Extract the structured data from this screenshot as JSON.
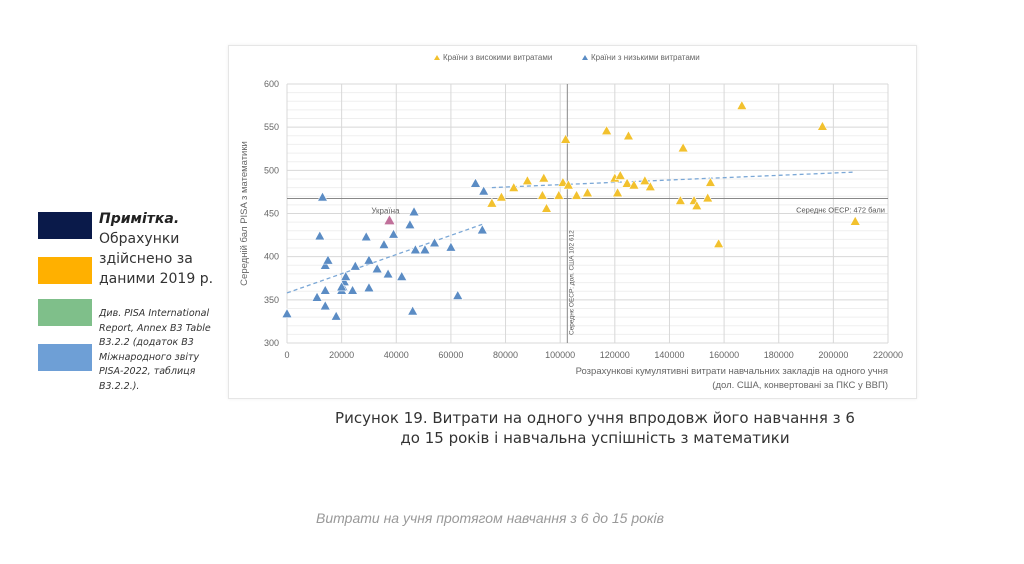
{
  "legend_boxes": {
    "colors": [
      "#0a1a4a",
      "#ffb000",
      "#7fbf8a",
      "#6e9fd6"
    ]
  },
  "note": {
    "title": "Примітка.",
    "text": "Обрахунки здійснено за даними 2019 р.",
    "source": "Див. PISA International Report, Annex B3 Table B3.2.2 (додаток B3 Міжнародного звіту PISA-2022, таблиця B3.2.2.)."
  },
  "figure_caption": "Рисунок 19. Витрати на одного учня впродовж його навчання з 6 до 15 років і навчальна успішність з математики",
  "sub_caption": "Витрати на учня протягом навчання з 6 до 15 років",
  "chart_data": {
    "type": "scatter",
    "xlabel_line1": "Розрахункові кумулятивні витрати навчальних закладів на одного учня",
    "xlabel_line2": "(дол. США, конвертовані за ПКС у ВВП)",
    "ylabel": "Середній бал PISA з математики",
    "xlim": [
      0,
      220000
    ],
    "ylim": [
      300,
      600
    ],
    "xticks": [
      "0",
      "20000",
      "40000",
      "60000",
      "80000",
      "100000",
      "120000",
      "140000",
      "160000",
      "180000",
      "200000",
      "220000"
    ],
    "yticks": [
      "300",
      "350",
      "400",
      "450",
      "500",
      "550",
      "600"
    ],
    "grid": true,
    "legend_position": "top",
    "oecd_mean_score": 472,
    "oecd_mean_score_label": "Середнє ОЕСР: 472 бали",
    "oecd_mean_spend": 102612,
    "oecd_mean_spend_label": "Середнє ОЕСР: дол. США 102 612",
    "annotation": {
      "label": "Україна",
      "x": 37500,
      "y": 442,
      "color": "#c0709a"
    },
    "series": [
      {
        "name": "Країни з низькими витратами",
        "color": "#5b8cc4",
        "trend": [
          [
            0,
            358
          ],
          [
            72000,
            438
          ]
        ],
        "points": [
          [
            0,
            334
          ],
          [
            13000,
            469
          ],
          [
            12000,
            424
          ],
          [
            11000,
            353
          ],
          [
            14000,
            390
          ],
          [
            15000,
            396
          ],
          [
            14000,
            343
          ],
          [
            14000,
            361
          ],
          [
            18000,
            331
          ],
          [
            20000,
            361
          ],
          [
            20500,
            365
          ],
          [
            21000,
            371
          ],
          [
            21500,
            377
          ],
          [
            20000,
            365
          ],
          [
            24000,
            361
          ],
          [
            25000,
            389
          ],
          [
            29000,
            423
          ],
          [
            30000,
            396
          ],
          [
            30000,
            364
          ],
          [
            33000,
            386
          ],
          [
            35500,
            414
          ],
          [
            37000,
            380
          ],
          [
            39000,
            426
          ],
          [
            42000,
            377
          ],
          [
            45000,
            437
          ],
          [
            46500,
            452
          ],
          [
            46000,
            337
          ],
          [
            47000,
            408
          ],
          [
            50500,
            408
          ],
          [
            54000,
            416
          ],
          [
            60000,
            411
          ],
          [
            62500,
            355
          ],
          [
            69000,
            485
          ],
          [
            71500,
            431
          ],
          [
            72000,
            476
          ]
        ]
      },
      {
        "name": "Країни з високими витратами",
        "color": "#f2c12e",
        "trend": [
          [
            75000,
            480
          ],
          [
            208000,
            498
          ]
        ],
        "points": [
          [
            75000,
            462
          ],
          [
            78500,
            469
          ],
          [
            83000,
            480
          ],
          [
            88000,
            488
          ],
          [
            94000,
            491
          ],
          [
            93500,
            471
          ],
          [
            95000,
            456
          ],
          [
            99500,
            471
          ],
          [
            101000,
            486
          ],
          [
            102000,
            536
          ],
          [
            103000,
            483
          ],
          [
            106000,
            471
          ],
          [
            110000,
            474
          ],
          [
            117000,
            546
          ],
          [
            120000,
            491
          ],
          [
            122000,
            494
          ],
          [
            121000,
            474
          ],
          [
            125000,
            540
          ],
          [
            124500,
            485
          ],
          [
            127000,
            483
          ],
          [
            131000,
            488
          ],
          [
            133000,
            481
          ],
          [
            145000,
            526
          ],
          [
            144000,
            465
          ],
          [
            149000,
            465
          ],
          [
            150000,
            459
          ],
          [
            154000,
            468
          ],
          [
            155000,
            486
          ],
          [
            158000,
            415
          ],
          [
            166500,
            575
          ],
          [
            196000,
            551
          ],
          [
            208000,
            441
          ]
        ]
      }
    ]
  }
}
